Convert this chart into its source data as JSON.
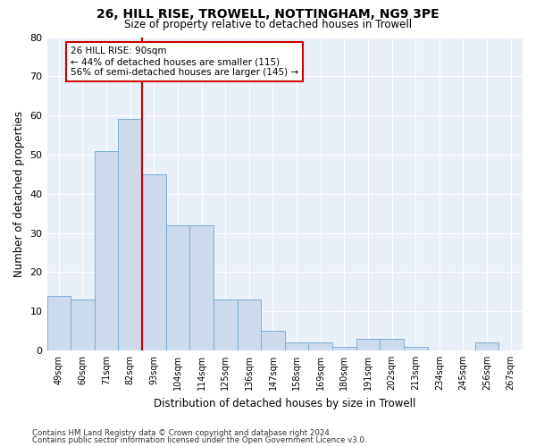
{
  "title1": "26, HILL RISE, TROWELL, NOTTINGHAM, NG9 3PE",
  "title2": "Size of property relative to detached houses in Trowell",
  "xlabel": "Distribution of detached houses by size in Trowell",
  "ylabel": "Number of detached properties",
  "categories": [
    "49sqm",
    "60sqm",
    "71sqm",
    "82sqm",
    "93sqm",
    "104sqm",
    "114sqm",
    "125sqm",
    "136sqm",
    "147sqm",
    "158sqm",
    "169sqm",
    "180sqm",
    "191sqm",
    "202sqm",
    "213sqm",
    "234sqm",
    "245sqm",
    "256sqm",
    "267sqm"
  ],
  "values": [
    14,
    13,
    51,
    59,
    45,
    32,
    32,
    13,
    13,
    5,
    2,
    2,
    1,
    3,
    3,
    1,
    0,
    0,
    2,
    0
  ],
  "bar_color": "#cddaeb",
  "bar_edge_color": "#7aaed4",
  "vline_color": "#cc0000",
  "annotation_text": "26 HILL RISE: 90sqm\n← 44% of detached houses are smaller (115)\n56% of semi-detached houses are larger (145) →",
  "annotation_box_color": "white",
  "annotation_box_edge": "#cc0000",
  "ylim": [
    0,
    80
  ],
  "yticks": [
    0,
    10,
    20,
    30,
    40,
    50,
    60,
    70,
    80
  ],
  "footer1": "Contains HM Land Registry data © Crown copyright and database right 2024.",
  "footer2": "Contains public sector information licensed under the Open Government Licence v3.0.",
  "fig_width": 6.0,
  "fig_height": 5.0,
  "bg_color": "#eaf0f8",
  "grid_color": "#ffffff"
}
